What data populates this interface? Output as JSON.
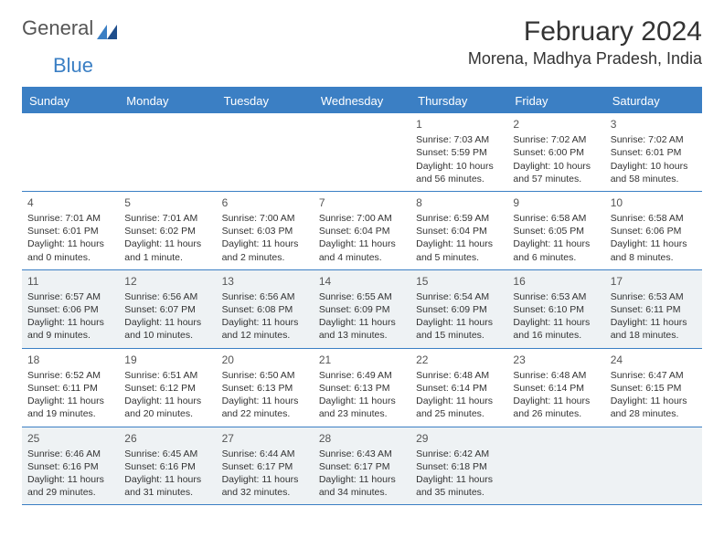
{
  "brand": {
    "part1": "General",
    "part2": "Blue"
  },
  "title": "February 2024",
  "location": "Morena, Madhya Pradesh, India",
  "colors": {
    "accent": "#3b7fc4",
    "shade": "#eef2f4",
    "text": "#333333",
    "bg": "#ffffff"
  },
  "dow": [
    "Sunday",
    "Monday",
    "Tuesday",
    "Wednesday",
    "Thursday",
    "Friday",
    "Saturday"
  ],
  "weeks": [
    [
      null,
      null,
      null,
      null,
      {
        "n": "1",
        "sr": "Sunrise: 7:03 AM",
        "ss": "Sunset: 5:59 PM",
        "d1": "Daylight: 10 hours",
        "d2": "and 56 minutes."
      },
      {
        "n": "2",
        "sr": "Sunrise: 7:02 AM",
        "ss": "Sunset: 6:00 PM",
        "d1": "Daylight: 10 hours",
        "d2": "and 57 minutes."
      },
      {
        "n": "3",
        "sr": "Sunrise: 7:02 AM",
        "ss": "Sunset: 6:01 PM",
        "d1": "Daylight: 10 hours",
        "d2": "and 58 minutes."
      }
    ],
    [
      {
        "n": "4",
        "sr": "Sunrise: 7:01 AM",
        "ss": "Sunset: 6:01 PM",
        "d1": "Daylight: 11 hours",
        "d2": "and 0 minutes."
      },
      {
        "n": "5",
        "sr": "Sunrise: 7:01 AM",
        "ss": "Sunset: 6:02 PM",
        "d1": "Daylight: 11 hours",
        "d2": "and 1 minute."
      },
      {
        "n": "6",
        "sr": "Sunrise: 7:00 AM",
        "ss": "Sunset: 6:03 PM",
        "d1": "Daylight: 11 hours",
        "d2": "and 2 minutes."
      },
      {
        "n": "7",
        "sr": "Sunrise: 7:00 AM",
        "ss": "Sunset: 6:04 PM",
        "d1": "Daylight: 11 hours",
        "d2": "and 4 minutes."
      },
      {
        "n": "8",
        "sr": "Sunrise: 6:59 AM",
        "ss": "Sunset: 6:04 PM",
        "d1": "Daylight: 11 hours",
        "d2": "and 5 minutes."
      },
      {
        "n": "9",
        "sr": "Sunrise: 6:58 AM",
        "ss": "Sunset: 6:05 PM",
        "d1": "Daylight: 11 hours",
        "d2": "and 6 minutes."
      },
      {
        "n": "10",
        "sr": "Sunrise: 6:58 AM",
        "ss": "Sunset: 6:06 PM",
        "d1": "Daylight: 11 hours",
        "d2": "and 8 minutes."
      }
    ],
    [
      {
        "n": "11",
        "sr": "Sunrise: 6:57 AM",
        "ss": "Sunset: 6:06 PM",
        "d1": "Daylight: 11 hours",
        "d2": "and 9 minutes."
      },
      {
        "n": "12",
        "sr": "Sunrise: 6:56 AM",
        "ss": "Sunset: 6:07 PM",
        "d1": "Daylight: 11 hours",
        "d2": "and 10 minutes."
      },
      {
        "n": "13",
        "sr": "Sunrise: 6:56 AM",
        "ss": "Sunset: 6:08 PM",
        "d1": "Daylight: 11 hours",
        "d2": "and 12 minutes."
      },
      {
        "n": "14",
        "sr": "Sunrise: 6:55 AM",
        "ss": "Sunset: 6:09 PM",
        "d1": "Daylight: 11 hours",
        "d2": "and 13 minutes."
      },
      {
        "n": "15",
        "sr": "Sunrise: 6:54 AM",
        "ss": "Sunset: 6:09 PM",
        "d1": "Daylight: 11 hours",
        "d2": "and 15 minutes."
      },
      {
        "n": "16",
        "sr": "Sunrise: 6:53 AM",
        "ss": "Sunset: 6:10 PM",
        "d1": "Daylight: 11 hours",
        "d2": "and 16 minutes."
      },
      {
        "n": "17",
        "sr": "Sunrise: 6:53 AM",
        "ss": "Sunset: 6:11 PM",
        "d1": "Daylight: 11 hours",
        "d2": "and 18 minutes."
      }
    ],
    [
      {
        "n": "18",
        "sr": "Sunrise: 6:52 AM",
        "ss": "Sunset: 6:11 PM",
        "d1": "Daylight: 11 hours",
        "d2": "and 19 minutes."
      },
      {
        "n": "19",
        "sr": "Sunrise: 6:51 AM",
        "ss": "Sunset: 6:12 PM",
        "d1": "Daylight: 11 hours",
        "d2": "and 20 minutes."
      },
      {
        "n": "20",
        "sr": "Sunrise: 6:50 AM",
        "ss": "Sunset: 6:13 PM",
        "d1": "Daylight: 11 hours",
        "d2": "and 22 minutes."
      },
      {
        "n": "21",
        "sr": "Sunrise: 6:49 AM",
        "ss": "Sunset: 6:13 PM",
        "d1": "Daylight: 11 hours",
        "d2": "and 23 minutes."
      },
      {
        "n": "22",
        "sr": "Sunrise: 6:48 AM",
        "ss": "Sunset: 6:14 PM",
        "d1": "Daylight: 11 hours",
        "d2": "and 25 minutes."
      },
      {
        "n": "23",
        "sr": "Sunrise: 6:48 AM",
        "ss": "Sunset: 6:14 PM",
        "d1": "Daylight: 11 hours",
        "d2": "and 26 minutes."
      },
      {
        "n": "24",
        "sr": "Sunrise: 6:47 AM",
        "ss": "Sunset: 6:15 PM",
        "d1": "Daylight: 11 hours",
        "d2": "and 28 minutes."
      }
    ],
    [
      {
        "n": "25",
        "sr": "Sunrise: 6:46 AM",
        "ss": "Sunset: 6:16 PM",
        "d1": "Daylight: 11 hours",
        "d2": "and 29 minutes."
      },
      {
        "n": "26",
        "sr": "Sunrise: 6:45 AM",
        "ss": "Sunset: 6:16 PM",
        "d1": "Daylight: 11 hours",
        "d2": "and 31 minutes."
      },
      {
        "n": "27",
        "sr": "Sunrise: 6:44 AM",
        "ss": "Sunset: 6:17 PM",
        "d1": "Daylight: 11 hours",
        "d2": "and 32 minutes."
      },
      {
        "n": "28",
        "sr": "Sunrise: 6:43 AM",
        "ss": "Sunset: 6:17 PM",
        "d1": "Daylight: 11 hours",
        "d2": "and 34 minutes."
      },
      {
        "n": "29",
        "sr": "Sunrise: 6:42 AM",
        "ss": "Sunset: 6:18 PM",
        "d1": "Daylight: 11 hours",
        "d2": "and 35 minutes."
      },
      null,
      null
    ]
  ],
  "shade_rows": [
    2,
    4
  ]
}
